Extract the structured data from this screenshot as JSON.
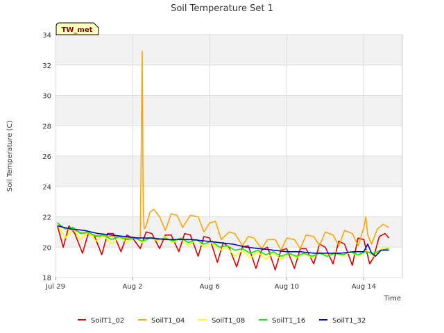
{
  "chart_data": {
    "type": "line",
    "title": "Soil Temperature Set 1",
    "xlabel": "Time",
    "ylabel": "Soil Temperature (C)",
    "station_label": "TW_met",
    "ylim": [
      18,
      34
    ],
    "y_ticks": [
      18,
      20,
      22,
      24,
      26,
      28,
      30,
      32,
      34
    ],
    "xlim_days": [
      0,
      18
    ],
    "x_ticks": [
      {
        "day": 0,
        "label": "Jul 29"
      },
      {
        "day": 4,
        "label": "Aug 2"
      },
      {
        "day": 8,
        "label": "Aug 6"
      },
      {
        "day": 12,
        "label": "Aug 10"
      },
      {
        "day": 16,
        "label": "Aug 14"
      }
    ],
    "grid": true,
    "legend_position": "bottom",
    "series": [
      {
        "name": "SoilT1_02",
        "color": "#dd0000",
        "x": [
          0.1,
          0.4,
          0.7,
          1.0,
          1.4,
          1.7,
          2.0,
          2.4,
          2.7,
          3.0,
          3.4,
          3.7,
          4.0,
          4.4,
          4.7,
          5.0,
          5.4,
          5.7,
          6.0,
          6.4,
          6.7,
          7.0,
          7.4,
          7.7,
          8.0,
          8.4,
          8.7,
          9.0,
          9.4,
          9.7,
          10.0,
          10.4,
          10.7,
          11.0,
          11.4,
          11.7,
          12.0,
          12.4,
          12.7,
          13.0,
          13.4,
          13.7,
          14.0,
          14.4,
          14.7,
          15.0,
          15.4,
          15.7,
          16.0,
          16.3,
          16.5,
          16.8,
          17.1,
          17.3
        ],
        "y": [
          21.4,
          20.0,
          21.4,
          20.9,
          19.6,
          20.9,
          20.8,
          19.5,
          20.9,
          20.9,
          19.7,
          20.8,
          20.6,
          19.9,
          21.0,
          20.9,
          19.9,
          20.8,
          20.8,
          19.7,
          20.9,
          20.8,
          19.4,
          20.7,
          20.6,
          19.0,
          20.3,
          20.0,
          18.7,
          20.0,
          20.1,
          18.6,
          19.8,
          20.0,
          18.5,
          19.8,
          19.9,
          18.6,
          19.9,
          19.9,
          18.9,
          20.2,
          20.0,
          18.9,
          20.4,
          20.2,
          18.8,
          20.6,
          20.5,
          18.9,
          19.3,
          20.7,
          20.9,
          20.6
        ]
      },
      {
        "name": "SoilT1_04",
        "color": "#ffa500",
        "x": [
          0.1,
          0.5,
          1.0,
          1.5,
          2.0,
          2.5,
          3.0,
          3.5,
          4.0,
          4.4,
          4.5,
          4.55,
          4.6,
          4.7,
          4.9,
          5.1,
          5.4,
          5.7,
          6.0,
          6.3,
          6.6,
          7.0,
          7.4,
          7.7,
          8.0,
          8.3,
          8.6,
          9.0,
          9.3,
          9.7,
          10.0,
          10.3,
          10.7,
          11.0,
          11.4,
          11.7,
          12.0,
          12.4,
          12.7,
          13.0,
          13.4,
          13.7,
          14.0,
          14.4,
          14.7,
          15.0,
          15.4,
          15.7,
          16.0,
          16.1,
          16.2,
          16.4,
          16.7,
          17.0,
          17.3
        ],
        "y": [
          21.5,
          21.2,
          21.1,
          20.9,
          20.8,
          20.7,
          20.7,
          20.6,
          20.6,
          20.6,
          32.9,
          22.5,
          21.2,
          21.4,
          22.3,
          22.5,
          22.0,
          21.1,
          22.2,
          22.1,
          21.3,
          22.1,
          22.0,
          21.0,
          21.6,
          21.7,
          20.5,
          21.0,
          20.9,
          20.1,
          20.7,
          20.6,
          19.9,
          20.5,
          20.5,
          19.8,
          20.6,
          20.5,
          19.9,
          20.8,
          20.7,
          20.1,
          21.0,
          20.8,
          20.1,
          21.1,
          20.9,
          20.1,
          21.3,
          22.0,
          20.8,
          20.2,
          21.2,
          21.5,
          21.3
        ]
      },
      {
        "name": "SoilT1_08",
        "color": "#ffff00",
        "x": [
          0.1,
          0.5,
          0.9,
          1.3,
          1.7,
          2.1,
          2.5,
          2.9,
          3.3,
          3.7,
          4.1,
          4.5,
          4.9,
          5.3,
          5.7,
          6.1,
          6.5,
          6.9,
          7.3,
          7.7,
          8.1,
          8.5,
          8.9,
          9.3,
          9.7,
          10.1,
          10.5,
          10.9,
          11.3,
          11.7,
          12.1,
          12.5,
          12.9,
          13.3,
          13.7,
          14.1,
          14.5,
          14.9,
          15.3,
          15.7,
          16.1,
          16.5,
          16.9,
          17.3
        ],
        "y": [
          21.5,
          20.6,
          21.2,
          20.5,
          21.0,
          20.4,
          20.8,
          20.2,
          20.7,
          20.3,
          20.7,
          20.3,
          20.7,
          20.4,
          20.7,
          20.3,
          20.6,
          20.1,
          20.5,
          20.0,
          20.3,
          19.8,
          20.0,
          19.4,
          19.8,
          19.3,
          19.7,
          19.2,
          19.6,
          19.2,
          19.6,
          19.3,
          19.6,
          19.3,
          19.7,
          19.4,
          19.7,
          19.4,
          19.7,
          19.4,
          19.8,
          19.4,
          19.9,
          20.0
        ]
      },
      {
        "name": "SoilT1_16",
        "color": "#00ee00",
        "x": [
          0.1,
          0.5,
          0.9,
          1.3,
          1.7,
          2.1,
          2.5,
          2.9,
          3.3,
          3.7,
          4.1,
          4.5,
          4.9,
          5.3,
          5.7,
          6.1,
          6.5,
          6.9,
          7.3,
          7.7,
          8.1,
          8.5,
          8.9,
          9.3,
          9.7,
          10.1,
          10.5,
          10.9,
          11.3,
          11.7,
          12.1,
          12.5,
          12.9,
          13.3,
          13.7,
          14.1,
          14.5,
          14.9,
          15.3,
          15.7,
          16.1,
          16.5,
          16.9,
          17.3
        ],
        "y": [
          21.6,
          21.2,
          21.3,
          20.9,
          21.0,
          20.7,
          20.8,
          20.5,
          20.7,
          20.5,
          20.6,
          20.4,
          20.6,
          20.5,
          20.6,
          20.4,
          20.6,
          20.3,
          20.5,
          20.2,
          20.4,
          20.0,
          20.1,
          19.8,
          19.9,
          19.6,
          19.8,
          19.5,
          19.7,
          19.4,
          19.6,
          19.4,
          19.6,
          19.4,
          19.6,
          19.4,
          19.6,
          19.5,
          19.7,
          19.5,
          19.7,
          19.6,
          19.8,
          19.9
        ]
      },
      {
        "name": "SoilT1_32",
        "color": "#0000cc",
        "x": [
          0.1,
          0.8,
          1.5,
          2.2,
          2.9,
          3.6,
          4.3,
          5.0,
          5.7,
          6.4,
          7.1,
          7.8,
          8.5,
          9.2,
          9.9,
          10.6,
          11.3,
          12.0,
          12.7,
          13.4,
          14.1,
          14.8,
          15.5,
          16.0,
          16.2,
          16.4,
          16.6,
          16.9,
          17.3
        ],
        "y": [
          21.4,
          21.2,
          21.1,
          20.9,
          20.8,
          20.7,
          20.6,
          20.6,
          20.5,
          20.5,
          20.5,
          20.4,
          20.3,
          20.2,
          20.0,
          19.9,
          19.8,
          19.7,
          19.7,
          19.6,
          19.6,
          19.6,
          19.7,
          19.7,
          20.2,
          19.6,
          19.4,
          19.8,
          19.8
        ]
      }
    ]
  }
}
